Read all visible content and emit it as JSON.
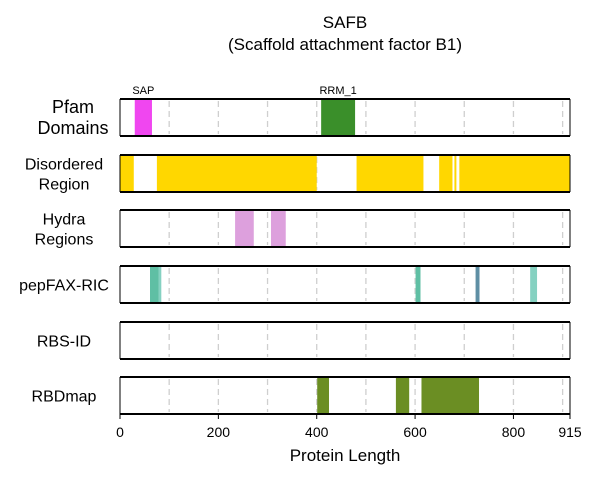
{
  "chart_data": {
    "type": "feature-track",
    "title": [
      "SAFB",
      "(Scaffold attachment factor B1)"
    ],
    "xlabel": "Protein Length",
    "xlim": [
      0,
      915
    ],
    "xticks": [
      0,
      200,
      400,
      600,
      800,
      915
    ],
    "grid": {
      "x": true,
      "style": "dashed",
      "positions": [
        100,
        200,
        300,
        400,
        500,
        600,
        700,
        800,
        900
      ]
    },
    "tracks": [
      {
        "label": [
          "Pfam",
          "Domains"
        ],
        "features": [
          {
            "name": "SAP",
            "start": 30,
            "end": 65,
            "color": "#f046f0"
          },
          {
            "name": "RRM_1",
            "start": 409,
            "end": 478,
            "color": "#3a8f2a"
          }
        ]
      },
      {
        "label": [
          "Disordered",
          "Region"
        ],
        "features": [
          {
            "start": 0,
            "end": 28,
            "color": "#ffd700"
          },
          {
            "start": 75,
            "end": 400,
            "color": "#ffd700"
          },
          {
            "start": 481,
            "end": 617,
            "color": "#ffd700"
          },
          {
            "start": 649,
            "end": 676,
            "color": "#ffd700"
          },
          {
            "start": 680,
            "end": 684,
            "color": "#ffd700"
          },
          {
            "start": 690,
            "end": 915,
            "color": "#ffd700"
          }
        ]
      },
      {
        "label": [
          "Hydra",
          "Regions"
        ],
        "features": [
          {
            "start": 234,
            "end": 272,
            "color": "#dda0dd"
          },
          {
            "start": 307,
            "end": 337,
            "color": "#dda0dd"
          }
        ]
      },
      {
        "label": [
          "pepFAX-RIC"
        ],
        "features": [
          {
            "start": 61,
            "end": 79,
            "color": "#5fbfa4"
          },
          {
            "start": 79,
            "end": 84,
            "color": "#85d1c1"
          },
          {
            "start": 601,
            "end": 611,
            "color": "#5fbfa4"
          },
          {
            "start": 723,
            "end": 731,
            "color": "#5f8fa4"
          },
          {
            "start": 834,
            "end": 848,
            "color": "#85d1c1"
          }
        ]
      },
      {
        "label": [
          "RBS-ID"
        ],
        "features": []
      },
      {
        "label": [
          "RBDmap"
        ],
        "features": [
          {
            "start": 401,
            "end": 425,
            "color": "#6b8e23"
          },
          {
            "start": 561,
            "end": 588,
            "color": "#6b8e23"
          },
          {
            "start": 613,
            "end": 730,
            "color": "#6b8e23"
          }
        ]
      }
    ]
  }
}
